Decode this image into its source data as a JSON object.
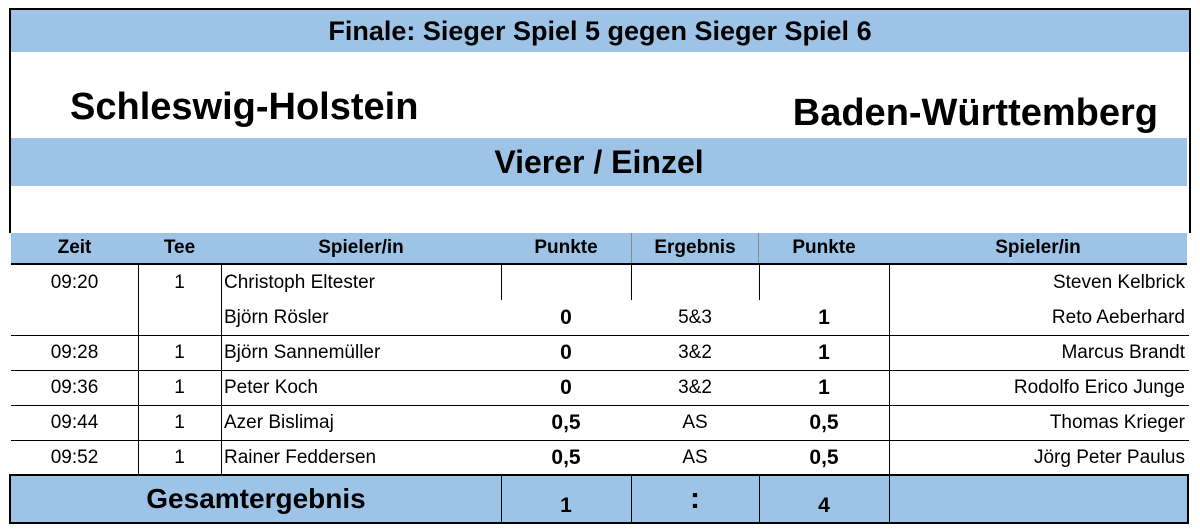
{
  "title": "Finale: Sieger Spiel 5 gegen Sieger Spiel 6",
  "team_left": "Schleswig-Holstein",
  "team_right": "Baden-Württemberg",
  "format": "Vierer / Einzel",
  "columns": {
    "zeit": "Zeit",
    "tee": "Tee",
    "spieler_left": "Spieler/in",
    "punkte_left": "Punkte",
    "ergebnis": "Ergebnis",
    "punkte_right": "Punkte",
    "spieler_right": "Spieler/in"
  },
  "rows": [
    {
      "zeit": "09:20",
      "tee": "1",
      "player_left": "Christoph Eltester",
      "punkte_left": "",
      "ergebnis": "",
      "punkte_right": "",
      "player_right": "Steven Kelbrick"
    },
    {
      "zeit": "",
      "tee": "",
      "player_left": "Björn Rösler",
      "punkte_left": "0",
      "ergebnis": "5&3",
      "punkte_right": "1",
      "player_right": "Reto Aeberhard"
    },
    {
      "zeit": "09:28",
      "tee": "1",
      "player_left": "Björn Sannemüller",
      "punkte_left": "0",
      "ergebnis": "3&2",
      "punkte_right": "1",
      "player_right": "Marcus Brandt"
    },
    {
      "zeit": "09:36",
      "tee": "1",
      "player_left": "Peter Koch",
      "punkte_left": "0",
      "ergebnis": "3&2",
      "punkte_right": "1",
      "player_right": "Rodolfo Erico Junge"
    },
    {
      "zeit": "09:44",
      "tee": "1",
      "player_left": "Azer Bislimaj",
      "punkte_left": "0,5",
      "ergebnis": "AS",
      "punkte_right": "0,5",
      "player_right": "Thomas Krieger"
    },
    {
      "zeit": "09:52",
      "tee": "1",
      "player_left": "Rainer Feddersen",
      "punkte_left": "0,5",
      "ergebnis": "AS",
      "punkte_right": "0,5",
      "player_right": "Jörg Peter Paulus"
    }
  ],
  "total": {
    "label": "Gesamtergebnis",
    "left": "1",
    "separator": ":",
    "right": "4"
  },
  "colors": {
    "header_blue": "#9dc3e6"
  }
}
